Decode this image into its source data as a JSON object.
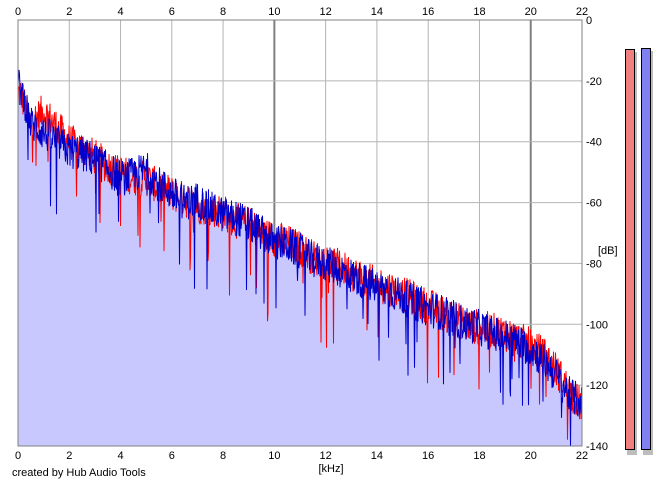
{
  "chart_data": {
    "type": "area",
    "xlabel": "[kHz]",
    "ylabel": "[dB]",
    "xlim": [
      0,
      22
    ],
    "ylim": [
      -140,
      0
    ],
    "x_ticks": [
      0,
      2,
      4,
      6,
      8,
      10,
      12,
      14,
      16,
      18,
      20,
      22
    ],
    "y_ticks": [
      0,
      -20,
      -40,
      -60,
      -80,
      -100,
      -120,
      -140
    ],
    "grid": true,
    "legend": "none",
    "fill_color": "#c8c8ff",
    "series": [
      {
        "color": "#ff0000",
        "x": [
          0.1,
          0.5,
          1,
          1.5,
          2,
          2.5,
          3,
          3.5,
          4,
          4.5,
          5,
          5.5,
          6,
          6.5,
          7,
          7.5,
          8,
          8.5,
          9,
          9.5,
          10,
          10.5,
          11,
          11.5,
          12,
          12.5,
          13,
          13.5,
          14,
          14.5,
          15,
          15.5,
          16,
          16.5,
          17,
          17.5,
          18,
          18.5,
          19,
          19.5,
          20,
          20.5,
          21,
          21.5,
          22
        ],
        "values": [
          -24,
          -34,
          -30,
          -35,
          -40,
          -42,
          -45,
          -48,
          -50,
          -52,
          -52,
          -55,
          -57,
          -59,
          -61,
          -62,
          -63,
          -66,
          -67,
          -70,
          -72,
          -73,
          -75,
          -78,
          -79,
          -81,
          -83,
          -85,
          -87,
          -88,
          -90,
          -92,
          -94,
          -96,
          -98,
          -100,
          -101,
          -102,
          -103,
          -105,
          -107,
          -110,
          -115,
          -122,
          -127
        ]
      },
      {
        "color": "#0000cc",
        "x": [
          0.1,
          0.5,
          1,
          1.5,
          2,
          2.5,
          3,
          3.5,
          4,
          4.5,
          5,
          5.5,
          6,
          6.5,
          7,
          7.5,
          8,
          8.5,
          9,
          9.5,
          10,
          10.5,
          11,
          11.5,
          12,
          12.5,
          13,
          13.5,
          14,
          14.5,
          15,
          15.5,
          16,
          16.5,
          17,
          17.5,
          18,
          18.5,
          19,
          19.5,
          20,
          20.5,
          21,
          21.5,
          22
        ],
        "values": [
          -22,
          -34,
          -37,
          -40,
          -43,
          -44,
          -46,
          -49,
          -52,
          -51,
          -49,
          -54,
          -57,
          -60,
          -59,
          -62,
          -64,
          -65,
          -67,
          -70,
          -73,
          -74,
          -76,
          -79,
          -80,
          -82,
          -84,
          -86,
          -88,
          -89,
          -91,
          -93,
          -95,
          -96,
          -98,
          -100,
          -101,
          -103,
          -104,
          -106,
          -108,
          -112,
          -117,
          -123,
          -126
        ]
      }
    ]
  },
  "meter": {
    "left_color": "#f08080",
    "right_color": "#8080f0",
    "left_level": -1.5,
    "right_level": -1.0
  },
  "credit": "created by Hub Audio Tools"
}
